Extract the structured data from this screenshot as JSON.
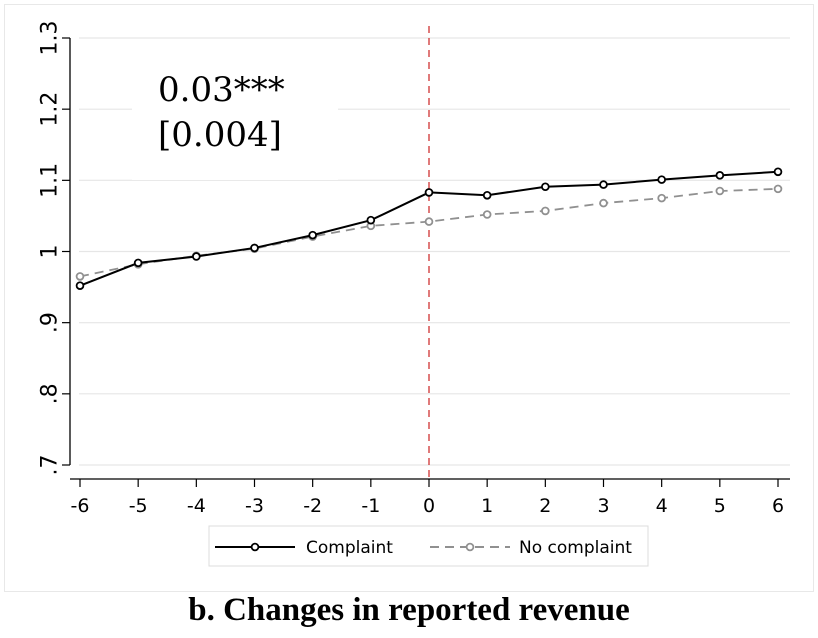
{
  "caption": "b. Changes in reported revenue",
  "chart_data": {
    "type": "line",
    "title": "",
    "xlabel": "",
    "ylabel": "",
    "x": [
      -6,
      -5,
      -4,
      -3,
      -2,
      -1,
      0,
      1,
      2,
      3,
      4,
      5,
      6
    ],
    "x_tick_labels": [
      "-6",
      "-5",
      "-4",
      "-3",
      "-2",
      "-1",
      "0",
      "1",
      "2",
      "3",
      "4",
      "5",
      "6"
    ],
    "y_tick_values": [
      0.7,
      0.8,
      0.9,
      1.0,
      1.1,
      1.2,
      1.3
    ],
    "y_tick_labels": [
      ".7",
      ".8",
      ".9",
      "1",
      "1.1",
      "1.2",
      "1.3"
    ],
    "xlim": [
      -6,
      6
    ],
    "ylim": [
      0.7,
      1.3
    ],
    "grid": "horizontal",
    "legend_position": "bottom",
    "event_line_x": 0,
    "series": [
      {
        "name": "Complaint",
        "color": "#000000",
        "style": "solid",
        "values": [
          0.952,
          0.984,
          0.993,
          1.005,
          1.023,
          1.044,
          1.083,
          1.079,
          1.091,
          1.094,
          1.101,
          1.107,
          1.112
        ]
      },
      {
        "name": "No complaint",
        "color": "#909090",
        "style": "dashed",
        "values": [
          0.965,
          0.982,
          0.994,
          1.004,
          1.021,
          1.036,
          1.042,
          1.052,
          1.057,
          1.068,
          1.075,
          1.085,
          1.088
        ]
      }
    ],
    "annotation": {
      "line1": "0.03***",
      "line2": "[0.004]"
    },
    "colors": {
      "event_line": "#cc2222",
      "grid": "#e6e6e6"
    }
  }
}
